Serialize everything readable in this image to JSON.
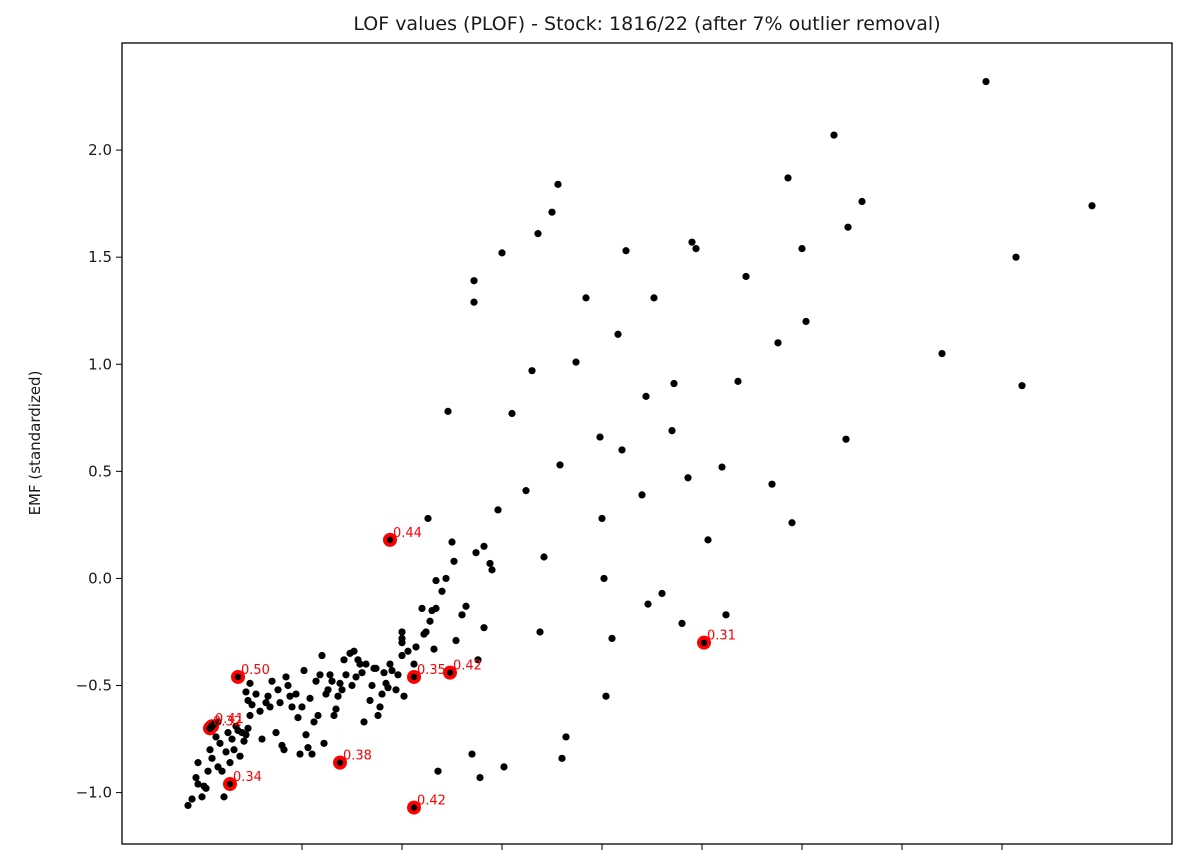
{
  "chart_data": {
    "type": "scatter",
    "title": "LOF values (PLOF) - Stock: 1816/22 (after 7% outlier removal)",
    "xlabel": "",
    "ylabel": "EMF (standardized)",
    "xlim": [
      -1.9,
      3.35
    ],
    "ylim": [
      -1.24,
      2.5
    ],
    "x_ticks": [
      -1.0,
      -0.5,
      0.0,
      0.5,
      1.0,
      1.5,
      2.0,
      2.5
    ],
    "y_ticks": [
      -1.0,
      -0.5,
      0.0,
      0.5,
      1.0,
      1.5,
      2.0
    ],
    "y_tick_labels": [
      "−1.0",
      "−0.5",
      "0.0",
      "0.5",
      "1.0",
      "1.5",
      "2.0"
    ],
    "x_tick_labels_visible": false,
    "colors": {
      "points": "#000000",
      "highlight": "#ff0000",
      "axes": "#000000"
    },
    "points": [
      [
        -1.57,
        -1.06
      ],
      [
        -1.55,
        -1.03
      ],
      [
        -1.53,
        -0.93
      ],
      [
        -1.52,
        -0.96
      ],
      [
        -1.5,
        -1.02
      ],
      [
        -1.52,
        -0.86
      ],
      [
        -1.49,
        -0.97
      ],
      [
        -1.48,
        -0.98
      ],
      [
        -1.47,
        -0.9
      ],
      [
        -1.46,
        -0.8
      ],
      [
        -1.45,
        -0.84
      ],
      [
        -1.43,
        -0.74
      ],
      [
        -1.42,
        -0.88
      ],
      [
        -1.41,
        -0.77
      ],
      [
        -1.4,
        -0.9
      ],
      [
        -1.39,
        -1.02
      ],
      [
        -1.38,
        -0.81
      ],
      [
        -1.37,
        -0.72
      ],
      [
        -1.36,
        -0.86
      ],
      [
        -1.35,
        -0.75
      ],
      [
        -1.34,
        -0.8
      ],
      [
        -1.33,
        -0.69
      ],
      [
        -1.32,
        -0.71
      ],
      [
        -1.31,
        -0.83
      ],
      [
        -1.3,
        -0.72
      ],
      [
        -1.29,
        -0.76
      ],
      [
        -1.28,
        -0.73
      ],
      [
        -1.27,
        -0.7
      ],
      [
        -1.26,
        -0.64
      ],
      [
        -1.25,
        -0.59
      ],
      [
        -1.28,
        -0.53
      ],
      [
        -1.27,
        -0.57
      ],
      [
        -1.26,
        -0.49
      ],
      [
        -1.23,
        -0.54
      ],
      [
        -1.21,
        -0.62
      ],
      [
        -1.2,
        -0.75
      ],
      [
        -1.18,
        -0.58
      ],
      [
        -1.17,
        -0.55
      ],
      [
        -1.16,
        -0.6
      ],
      [
        -1.15,
        -0.48
      ],
      [
        -1.13,
        -0.72
      ],
      [
        -1.12,
        -0.52
      ],
      [
        -1.11,
        -0.58
      ],
      [
        -1.1,
        -0.78
      ],
      [
        -1.09,
        -0.8
      ],
      [
        -1.08,
        -0.46
      ],
      [
        -1.07,
        -0.5
      ],
      [
        -1.06,
        -0.55
      ],
      [
        -1.05,
        -0.6
      ],
      [
        -1.03,
        -0.54
      ],
      [
        -1.02,
        -0.65
      ],
      [
        -1.01,
        -0.82
      ],
      [
        -1.0,
        -0.6
      ],
      [
        -0.99,
        -0.43
      ],
      [
        -0.98,
        -0.73
      ],
      [
        -0.97,
        -0.79
      ],
      [
        -0.96,
        -0.56
      ],
      [
        -0.95,
        -0.82
      ],
      [
        -0.94,
        -0.67
      ],
      [
        -0.93,
        -0.48
      ],
      [
        -0.92,
        -0.64
      ],
      [
        -0.91,
        -0.45
      ],
      [
        -0.9,
        -0.36
      ],
      [
        -0.89,
        -0.77
      ],
      [
        -0.88,
        -0.54
      ],
      [
        -0.87,
        -0.52
      ],
      [
        -0.86,
        -0.45
      ],
      [
        -0.85,
        -0.48
      ],
      [
        -0.84,
        -0.64
      ],
      [
        -0.83,
        -0.61
      ],
      [
        -0.82,
        -0.55
      ],
      [
        -0.81,
        -0.49
      ],
      [
        -0.8,
        -0.52
      ],
      [
        -0.79,
        -0.38
      ],
      [
        -0.78,
        -0.45
      ],
      [
        -0.76,
        -0.35
      ],
      [
        -0.75,
        -0.5
      ],
      [
        -0.74,
        -0.34
      ],
      [
        -0.73,
        -0.46
      ],
      [
        -0.72,
        -0.38
      ],
      [
        -0.71,
        -0.4
      ],
      [
        -0.7,
        -0.44
      ],
      [
        -0.69,
        -0.67
      ],
      [
        -0.68,
        -0.4
      ],
      [
        -0.66,
        -0.57
      ],
      [
        -0.65,
        -0.5
      ],
      [
        -0.64,
        -0.42
      ],
      [
        -0.63,
        -0.42
      ],
      [
        -0.62,
        -0.64
      ],
      [
        -0.61,
        -0.6
      ],
      [
        -0.6,
        -0.54
      ],
      [
        -0.59,
        -0.44
      ],
      [
        -0.58,
        -0.49
      ],
      [
        -0.57,
        -0.51
      ],
      [
        -0.56,
        -0.4
      ],
      [
        -0.55,
        -0.43
      ],
      [
        -0.53,
        -0.52
      ],
      [
        -0.52,
        -0.45
      ],
      [
        -0.5,
        -0.3
      ],
      [
        -0.5,
        -0.28
      ],
      [
        -0.5,
        -0.25
      ],
      [
        -0.5,
        -0.36
      ],
      [
        -0.49,
        -0.55
      ],
      [
        -0.47,
        -0.34
      ],
      [
        -0.44,
        -0.4
      ],
      [
        -0.43,
        -0.32
      ],
      [
        -0.4,
        -0.14
      ],
      [
        -0.39,
        -0.26
      ],
      [
        -0.38,
        -0.25
      ],
      [
        -0.37,
        0.28
      ],
      [
        -0.36,
        -0.2
      ],
      [
        -0.35,
        -0.15
      ],
      [
        -0.34,
        -0.33
      ],
      [
        -0.33,
        -0.14
      ],
      [
        -0.33,
        -0.01
      ],
      [
        -0.32,
        -0.9
      ],
      [
        -0.3,
        -0.06
      ],
      [
        -0.28,
        0.0
      ],
      [
        -0.27,
        0.78
      ],
      [
        -0.25,
        0.17
      ],
      [
        -0.24,
        0.08
      ],
      [
        -0.23,
        -0.29
      ],
      [
        -0.2,
        -0.17
      ],
      [
        -0.18,
        -0.13
      ],
      [
        -0.15,
        -0.82
      ],
      [
        -0.14,
        1.39
      ],
      [
        -0.14,
        1.29
      ],
      [
        -0.13,
        0.12
      ],
      [
        -0.12,
        -0.38
      ],
      [
        -0.11,
        -0.93
      ],
      [
        -0.09,
        0.15
      ],
      [
        -0.09,
        -0.23
      ],
      [
        -0.06,
        0.07
      ],
      [
        -0.05,
        0.04
      ],
      [
        -0.02,
        0.32
      ],
      [
        0.0,
        1.52
      ],
      [
        0.01,
        -0.88
      ],
      [
        0.05,
        0.77
      ],
      [
        0.12,
        0.41
      ],
      [
        0.15,
        0.97
      ],
      [
        0.18,
        1.61
      ],
      [
        0.19,
        -0.25
      ],
      [
        0.21,
        0.1
      ],
      [
        0.25,
        1.71
      ],
      [
        0.28,
        1.84
      ],
      [
        0.29,
        0.53
      ],
      [
        0.3,
        -0.84
      ],
      [
        0.32,
        -0.74
      ],
      [
        0.37,
        1.01
      ],
      [
        0.42,
        1.31
      ],
      [
        0.49,
        0.66
      ],
      [
        0.5,
        0.28
      ],
      [
        0.51,
        0.0
      ],
      [
        0.52,
        -0.55
      ],
      [
        0.55,
        -0.28
      ],
      [
        0.58,
        1.14
      ],
      [
        0.6,
        0.6
      ],
      [
        0.62,
        1.53
      ],
      [
        0.7,
        0.39
      ],
      [
        0.72,
        0.85
      ],
      [
        0.73,
        -0.12
      ],
      [
        0.76,
        1.31
      ],
      [
        0.8,
        -0.07
      ],
      [
        0.85,
        0.69
      ],
      [
        0.86,
        0.91
      ],
      [
        0.9,
        -0.21
      ],
      [
        0.93,
        0.47
      ],
      [
        0.95,
        1.57
      ],
      [
        0.97,
        1.54
      ],
      [
        1.03,
        0.18
      ],
      [
        1.1,
        0.52
      ],
      [
        1.12,
        -0.17
      ],
      [
        1.18,
        0.92
      ],
      [
        1.22,
        1.41
      ],
      [
        1.35,
        0.44
      ],
      [
        1.38,
        1.1
      ],
      [
        1.43,
        1.87
      ],
      [
        1.45,
        0.26
      ],
      [
        1.5,
        1.54
      ],
      [
        1.52,
        1.2
      ],
      [
        1.66,
        2.07
      ],
      [
        1.72,
        0.65
      ],
      [
        1.73,
        1.64
      ],
      [
        1.8,
        1.76
      ],
      [
        2.2,
        1.05
      ],
      [
        2.42,
        2.32
      ],
      [
        2.57,
        1.5
      ],
      [
        2.6,
        0.9
      ],
      [
        2.95,
        1.74
      ],
      [
        -1.46,
        -0.7
      ],
      [
        -1.45,
        -0.69
      ],
      [
        -1.44,
        -0.68
      ],
      [
        -1.42,
        -0.67
      ]
    ],
    "highlighted": [
      {
        "x": -1.45,
        "y": -0.69,
        "lof": "0.41"
      },
      {
        "x": -1.46,
        "y": -0.7,
        "lof": "0.32"
      },
      {
        "x": -1.36,
        "y": -0.96,
        "lof": "0.34"
      },
      {
        "x": -1.32,
        "y": -0.46,
        "lof": "0.50"
      },
      {
        "x": -0.81,
        "y": -0.86,
        "lof": "0.38"
      },
      {
        "x": -0.56,
        "y": 0.18,
        "lof": "0.44"
      },
      {
        "x": -0.44,
        "y": -0.46,
        "lof": "0.35"
      },
      {
        "x": -0.26,
        "y": -0.44,
        "lof": "0.42"
      },
      {
        "x": -0.44,
        "y": -1.07,
        "lof": "0.42"
      },
      {
        "x": 1.01,
        "y": -0.3,
        "lof": "0.31"
      }
    ]
  }
}
